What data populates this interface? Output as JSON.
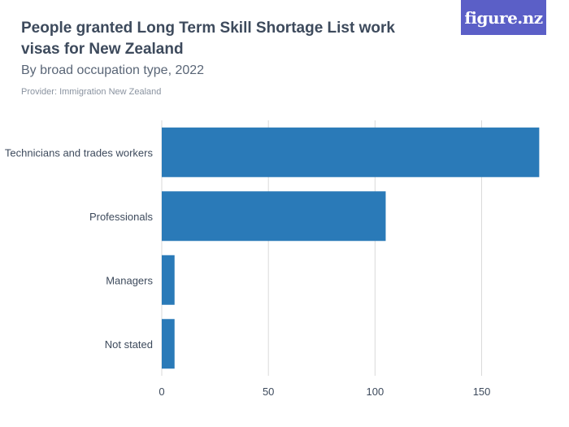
{
  "header": {
    "title": "People granted Long Term Skill Shortage List work visas for New Zealand",
    "subtitle": "By broad occupation type, 2022",
    "provider": "Provider: Immigration New Zealand",
    "logo_text": "figure.nz"
  },
  "colors": {
    "bar": "#2a7ab8",
    "grid": "#d9d9d9",
    "logo_bg": "#5b5fc7"
  },
  "chart_data": {
    "type": "bar",
    "orientation": "horizontal",
    "categories": [
      "Technicians and trades workers",
      "Professionals",
      "Managers",
      "Not stated"
    ],
    "values": [
      177,
      105,
      6,
      6
    ],
    "xlim": [
      0,
      178
    ],
    "xticks": [
      0,
      50,
      100,
      150
    ],
    "grid": true
  }
}
